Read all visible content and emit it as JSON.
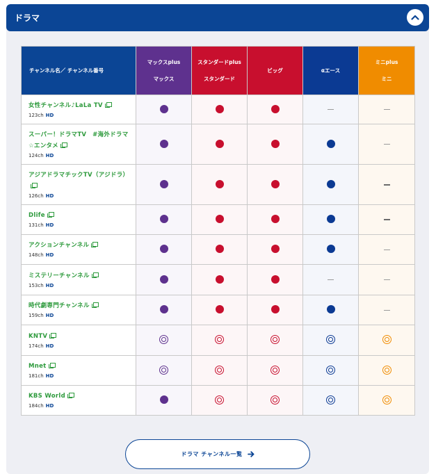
{
  "header": {
    "title": "ドラマ"
  },
  "table": {
    "name_header": "チャンネル名／ チャンネル番号",
    "plans": [
      {
        "key": "max",
        "line1": "マックスplus",
        "line2": "マックス",
        "color": "#5e318e"
      },
      {
        "key": "std",
        "line1": "スタンダードplus",
        "line2": "スタンダード",
        "color": "#c80f2e"
      },
      {
        "key": "big",
        "line1": "ビッグ",
        "line2": "",
        "color": "#c80f2e"
      },
      {
        "key": "ace",
        "line1": "αエース",
        "line2": "",
        "color": "#0b3a93"
      },
      {
        "key": "mini",
        "line1": "ミニplus",
        "line2": "ミニ",
        "color": "#f08c00"
      }
    ],
    "rows": [
      {
        "name": "女性チャンネル♪LaLa TV",
        "num": "123ch",
        "hd": "HD",
        "height": 42,
        "marks": [
          "dot",
          "dot",
          "dot",
          "dash",
          "dash"
        ]
      },
      {
        "name": "スーパー！ドラマTV　#海外ドラマ☆エンタメ",
        "num": "124ch",
        "hd": "HD",
        "height": 58,
        "marks": [
          "dot",
          "dot",
          "dot",
          "dot",
          "dash"
        ]
      },
      {
        "name": "アジアドラマチックTV（アジドラ）",
        "num": "126ch",
        "hd": "HD",
        "height": 58,
        "marks": [
          "dot",
          "dot",
          "dot",
          "dot",
          "dash-bold"
        ]
      },
      {
        "name": "Dlife",
        "num": "131ch",
        "hd": "HD",
        "height": 43,
        "marks": [
          "dot",
          "dot",
          "dot",
          "dot",
          "dash-bold"
        ]
      },
      {
        "name": "アクションチャンネル",
        "num": "148ch",
        "hd": "HD",
        "height": 43,
        "marks": [
          "dot",
          "dot",
          "dot",
          "dot",
          "dash"
        ]
      },
      {
        "name": "ミステリーチャンネル",
        "num": "153ch",
        "hd": "HD",
        "height": 44,
        "marks": [
          "dot",
          "dot",
          "dot",
          "dash",
          "dash"
        ]
      },
      {
        "name": "時代劇専門チャンネル",
        "num": "159ch",
        "hd": "HD",
        "height": 43,
        "marks": [
          "dot",
          "dot",
          "dot",
          "dot",
          "dash"
        ]
      },
      {
        "name": "KNTV",
        "num": "174ch",
        "hd": "HD",
        "height": 44,
        "marks": [
          "ring",
          "ring",
          "ring",
          "ring",
          "ring"
        ]
      },
      {
        "name": "Mnet",
        "num": "181ch",
        "hd": "HD",
        "height": 43,
        "marks": [
          "ring",
          "ring",
          "ring",
          "ring",
          "ring"
        ]
      },
      {
        "name": "KBS World",
        "num": "184ch",
        "hd": "HD",
        "height": 43,
        "marks": [
          "dot",
          "ring",
          "ring",
          "ring",
          "ring"
        ]
      }
    ]
  },
  "footer": {
    "list_button_label": "ドラマ チャンネル一覧"
  }
}
